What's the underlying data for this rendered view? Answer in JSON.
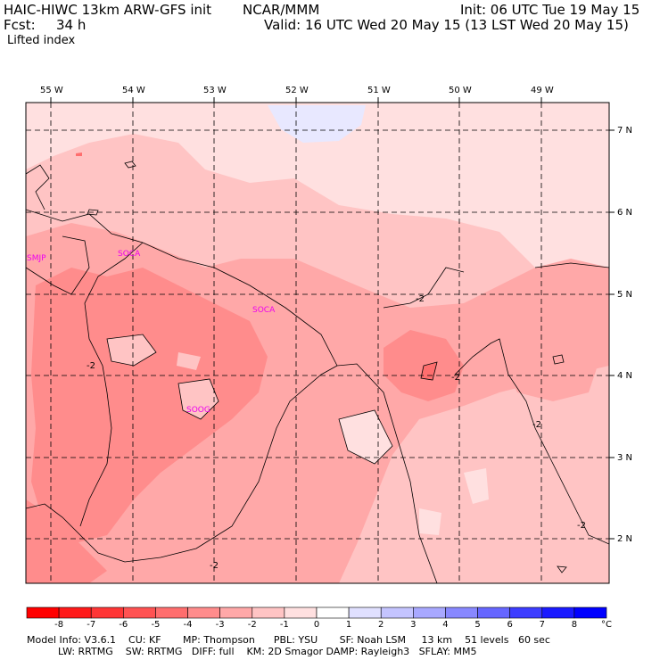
{
  "header": {
    "line1_left": "HAIC-HIWC 13km ARW-GFS init",
    "line1_mid": "NCAR/MMM",
    "line1_right": "Init: 06 UTC Tue 19 May 15",
    "fcst_label": "Fcst:",
    "fcst_value": "34 h",
    "valid": "Valid: 16 UTC Wed 20 May 15 (13 LST Wed 20 May 15)",
    "field": "Lifted index"
  },
  "map": {
    "lon_labels": [
      "55 W",
      "54 W",
      "53 W",
      "52 W",
      "51 W",
      "50 W",
      "49 W"
    ],
    "lat_labels": [
      "7 N",
      "6 N",
      "5 N",
      "4 N",
      "3 N",
      "2 N"
    ],
    "stations": [
      "SMJP",
      "SOCA",
      "SOCA",
      "SOOG"
    ],
    "contour_labels": [
      "-2",
      "-2",
      "-2",
      "-2",
      "-2",
      "-2"
    ]
  },
  "colorbar": {
    "labels": [
      "-8",
      "-7",
      "-6",
      "-5",
      "-4",
      "-3",
      "-2",
      "-1",
      "0",
      "1",
      "2",
      "3",
      "4",
      "5",
      "6",
      "7",
      "8"
    ],
    "unit": "°C",
    "colors": [
      "#ff0000",
      "#ff1a1a",
      "#ff3636",
      "#ff5252",
      "#ff6e6e",
      "#ff8c8c",
      "#ffa8a8",
      "#ffc4c4",
      "#ffe0e0",
      "#ffffff",
      "#e0e0ff",
      "#c4c4ff",
      "#a8a8ff",
      "#8888ff",
      "#6666ff",
      "#3d3dff",
      "#1a1aff",
      "#0000ff"
    ]
  },
  "footer": {
    "line1": "Model Info: V3.6.1    CU: KF       MP: Thompson      PBL: YSU       SF: Noah LSM     13 km    51 levels   60 sec",
    "line2": "          LW: RRTMG    SW: RRTMG   DIFF: full    KM: 2D Smagor DAMP: Rayleigh3   SFLAY: MM5"
  }
}
